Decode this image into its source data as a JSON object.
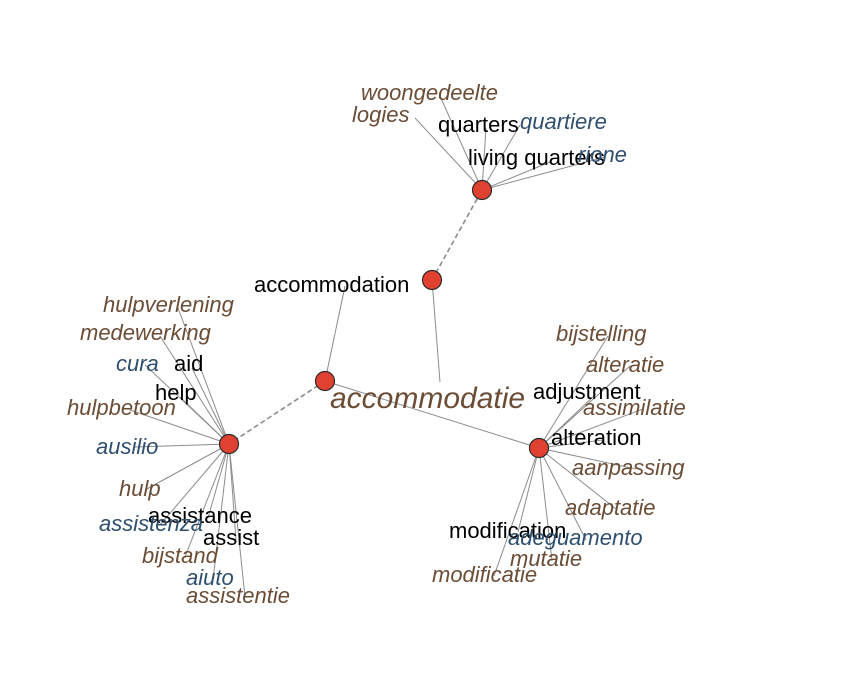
{
  "colors": {
    "node_fill": "#e04130",
    "node_stroke": "#2b2b2b",
    "edge": "#8c8c8c",
    "english_label": "#000000",
    "dutch_label": "#6b4c35",
    "italian_label": "#2f4f6f"
  },
  "center_word": "accommodatie",
  "hub_nodes": [
    {
      "id": "root",
      "label": ""
    },
    {
      "id": "accommodation",
      "label": "accommodation"
    },
    {
      "id": "living_quarters",
      "label": "living quarters"
    },
    {
      "id": "aid",
      "label": "aid"
    },
    {
      "id": "alteration",
      "label": "alteration"
    }
  ],
  "english_labels": [
    "quarters",
    "help",
    "assistance",
    "assist",
    "adjustment",
    "modification"
  ],
  "dutch_labels": [
    "woongedeelte",
    "logies",
    "hulpverlening",
    "medewerking",
    "hulpbetoon",
    "hulp",
    "bijstand",
    "assistentie",
    "bijstelling",
    "alteratie",
    "assimilatie",
    "aanpassing",
    "adaptatie",
    "mutatie",
    "modificatie"
  ],
  "italian_labels": [
    "quartiere",
    "rione",
    "cura",
    "ausilio",
    "assistenza",
    "aiuto",
    "adeguamento"
  ]
}
